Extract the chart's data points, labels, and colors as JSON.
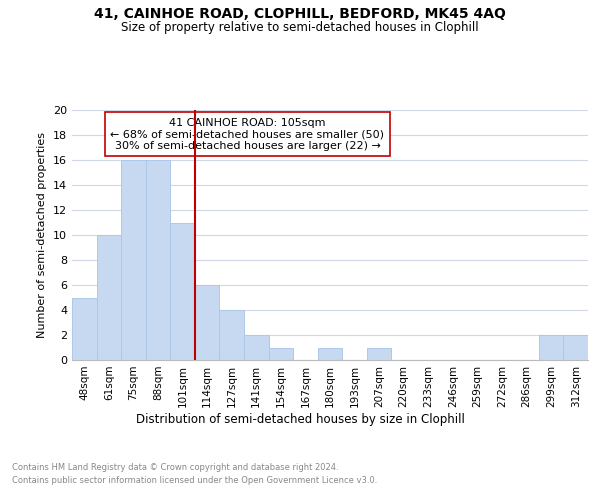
{
  "title1": "41, CAINHOE ROAD, CLOPHILL, BEDFORD, MK45 4AQ",
  "title2": "Size of property relative to semi-detached houses in Clophill",
  "xlabel": "Distribution of semi-detached houses by size in Clophill",
  "ylabel": "Number of semi-detached properties",
  "categories": [
    "48sqm",
    "61sqm",
    "75sqm",
    "88sqm",
    "101sqm",
    "114sqm",
    "127sqm",
    "141sqm",
    "154sqm",
    "167sqm",
    "180sqm",
    "193sqm",
    "207sqm",
    "220sqm",
    "233sqm",
    "246sqm",
    "259sqm",
    "272sqm",
    "286sqm",
    "299sqm",
    "312sqm"
  ],
  "values": [
    5,
    10,
    16,
    16,
    11,
    6,
    4,
    2,
    1,
    0,
    1,
    0,
    1,
    0,
    0,
    0,
    0,
    0,
    0,
    2,
    2
  ],
  "bar_color": "#c6d9f0",
  "bar_edge_color": "#aec8e8",
  "vline_x": 4.5,
  "vline_color": "#c00000",
  "annotation_title": "41 CAINHOE ROAD: 105sqm",
  "annotation_line1": "← 68% of semi-detached houses are smaller (50)",
  "annotation_line2": "30% of semi-detached houses are larger (22) →",
  "annotation_box_color": "#ffffff",
  "annotation_box_edge": "#c00000",
  "ylim": [
    0,
    20
  ],
  "yticks": [
    0,
    2,
    4,
    6,
    8,
    10,
    12,
    14,
    16,
    18,
    20
  ],
  "footer1": "Contains HM Land Registry data © Crown copyright and database right 2024.",
  "footer2": "Contains public sector information licensed under the Open Government Licence v3.0.",
  "bg_color": "#ffffff",
  "grid_color": "#d0d8e8"
}
